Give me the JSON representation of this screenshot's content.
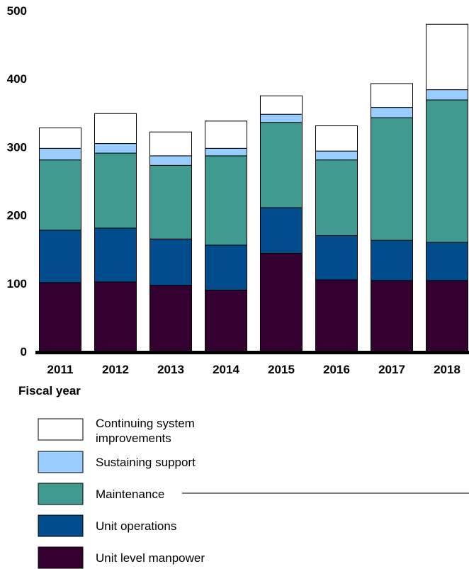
{
  "chart_data": {
    "type": "bar",
    "stacked": true,
    "xlabel": "Fiscal year",
    "ylabel": "",
    "ylim": [
      0,
      500
    ],
    "yticks": [
      0,
      100,
      200,
      300,
      400,
      500
    ],
    "grid": false,
    "legend_position": "bottom",
    "categories": [
      "2011",
      "2012",
      "2013",
      "2014",
      "2015",
      "2016",
      "2017",
      "2018"
    ],
    "series": [
      {
        "name": "Unit level manpower",
        "color": "#33002F",
        "values": [
          101,
          102,
          97,
          90,
          144,
          105,
          104,
          104
        ]
      },
      {
        "name": "Unit operations",
        "color": "#004C8C",
        "values": [
          77,
          79,
          68,
          66,
          67,
          65,
          59,
          56
        ]
      },
      {
        "name": "Maintenance",
        "color": "#409A8F",
        "values": [
          103,
          110,
          108,
          131,
          125,
          111,
          180,
          209
        ]
      },
      {
        "name": "Sustaining support",
        "color": "#99CCFF",
        "values": [
          17,
          14,
          14,
          11,
          12,
          13,
          15,
          15
        ]
      },
      {
        "name": "Continuing system improvements",
        "color": "#FFFFFF",
        "values": [
          30,
          44,
          35,
          40,
          27,
          37,
          35,
          96
        ]
      }
    ],
    "legend": [
      {
        "lines": [
          "Continuing system",
          "improvements"
        ],
        "color": "#FFFFFF"
      },
      {
        "lines": [
          "Sustaining support"
        ],
        "color": "#99CCFF"
      },
      {
        "lines": [
          "Maintenance"
        ],
        "color": "#409A8F"
      },
      {
        "lines": [
          "Unit operations"
        ],
        "color": "#004C8C"
      },
      {
        "lines": [
          "Unit level manpower"
        ],
        "color": "#33002F"
      }
    ]
  }
}
